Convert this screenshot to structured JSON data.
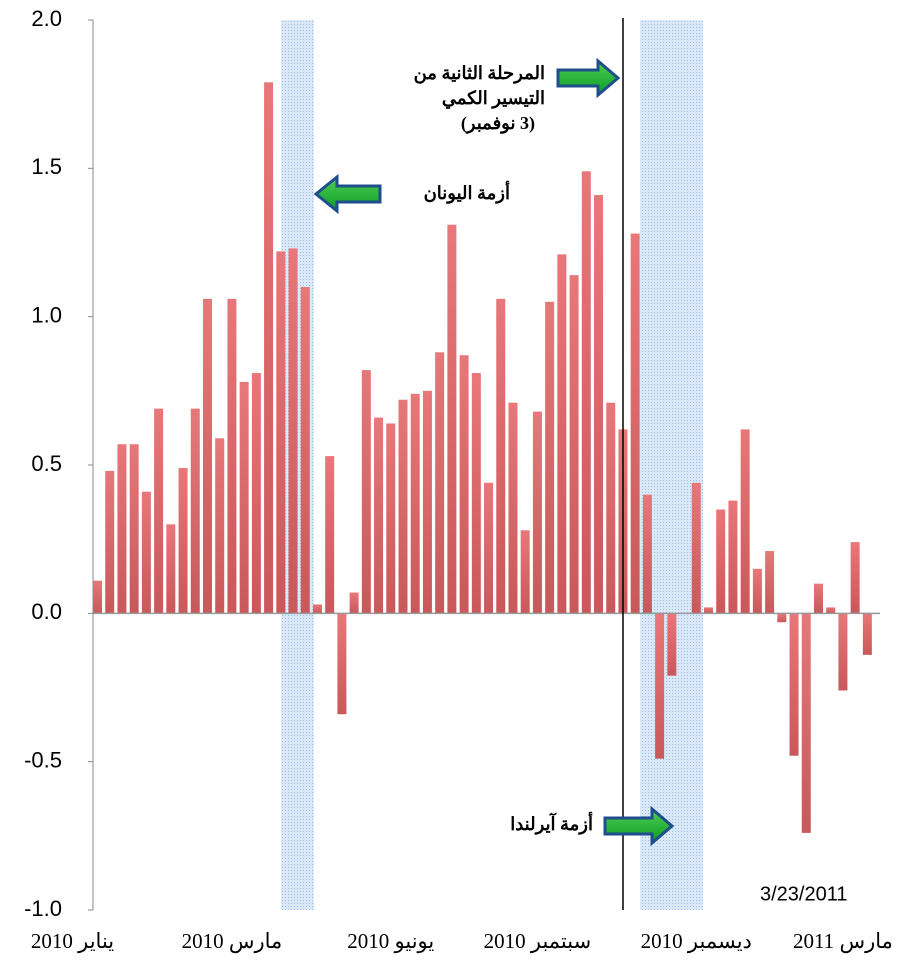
{
  "chart_data": {
    "type": "bar",
    "annotations": {
      "qe2": [
        "المرحلة الثانية من",
        "التيسير الكمي",
        "(3 نوفمبر)"
      ],
      "greece": "أزمة اليونان",
      "ireland": "أزمة آيرلندا",
      "date": "3/23/2011"
    },
    "categories": [
      "يناير 2010",
      null,
      null,
      null,
      null,
      null,
      null,
      null,
      null,
      null,
      null,
      "مارس 2010",
      null,
      null,
      null,
      null,
      null,
      null,
      null,
      null,
      null,
      null,
      null,
      null,
      "يونيو 2010",
      null,
      null,
      null,
      null,
      null,
      null,
      null,
      null,
      null,
      null,
      null,
      "سبتمبر 2010",
      null,
      null,
      null,
      null,
      null,
      null,
      null,
      null,
      null,
      null,
      null,
      null,
      "ديسمبر 2010",
      null,
      null,
      null,
      null,
      null,
      null,
      null,
      null,
      null,
      null,
      null,
      "مارس 2011",
      null,
      null
    ],
    "values": [
      0.11,
      0.48,
      0.57,
      0.57,
      0.41,
      0.69,
      0.3,
      0.49,
      0.69,
      1.06,
      0.59,
      1.06,
      0.78,
      0.81,
      1.79,
      1.22,
      1.23,
      1.1,
      0.03,
      0.53,
      -0.34,
      0.07,
      0.82,
      0.66,
      0.64,
      0.72,
      0.74,
      0.75,
      0.88,
      1.31,
      0.87,
      0.81,
      0.44,
      1.06,
      0.71,
      0.28,
      0.68,
      1.05,
      1.21,
      1.14,
      1.49,
      1.41,
      0.71,
      0.62,
      1.28,
      0.4,
      -0.49,
      -0.21,
      0,
      0.44,
      0.02,
      0.35,
      0.38,
      0.62,
      0.15,
      0.21,
      -0.03,
      -0.48,
      -0.74,
      0.1,
      0.02,
      -0.26,
      0.24,
      -0.14
    ],
    "color": "#e8777a",
    "ylim": [
      -1.0,
      2.0
    ],
    "yticks": [
      {
        "value": -1.0,
        "label": "-1.0"
      },
      -0.5,
      {
        "value": 0,
        "label": "0.0"
      },
      0.5,
      {
        "value": 1.0,
        "label": "1.0"
      },
      1.5,
      {
        "value": 2.0,
        "label": "2.0"
      }
    ]
  }
}
